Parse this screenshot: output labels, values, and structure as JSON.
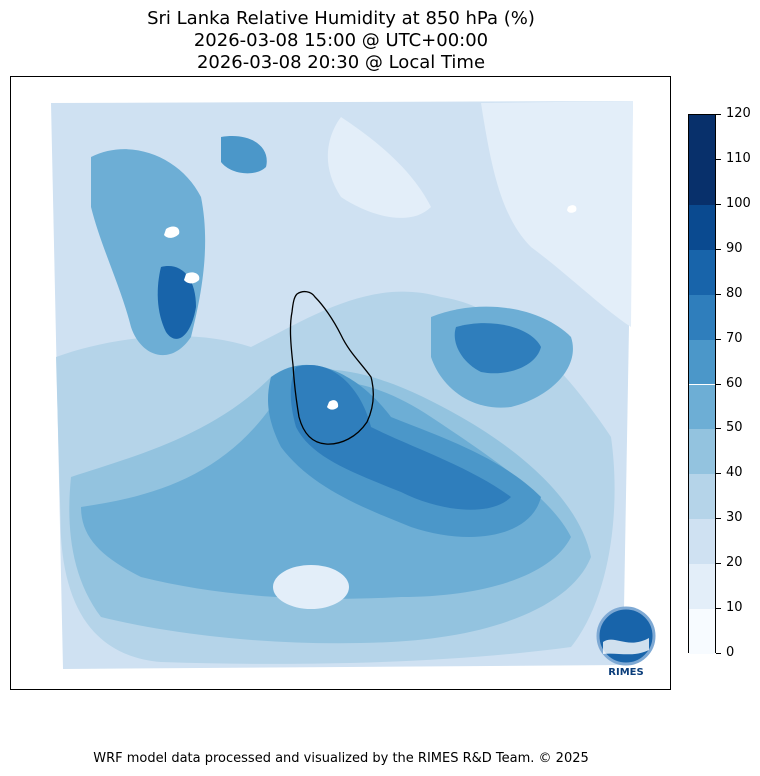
{
  "title": {
    "line1": "Sri Lanka Relative Humidity at 850 hPa (%)",
    "line2": "2026-03-08 15:00 @ UTC+00:00",
    "line3": "2026-03-08 20:30 @ Local Time"
  },
  "colorbar": {
    "levels": [
      "0",
      "10",
      "20",
      "30",
      "40",
      "50",
      "60",
      "70",
      "80",
      "90",
      "100",
      "110",
      "120"
    ],
    "colors": [
      "#f7fbff",
      "#e3eef9",
      "#cfe1f2",
      "#b5d4e9",
      "#93c3df",
      "#6daed5",
      "#4b97c9",
      "#2f7ebc",
      "#1864aa",
      "#0a4a90",
      "#08306b",
      "#08306b"
    ]
  },
  "logo": {
    "text": "RIMES"
  },
  "footer": {
    "text": "WRF model data processed and visualized by the RIMES R&D Team. © 2025"
  }
}
